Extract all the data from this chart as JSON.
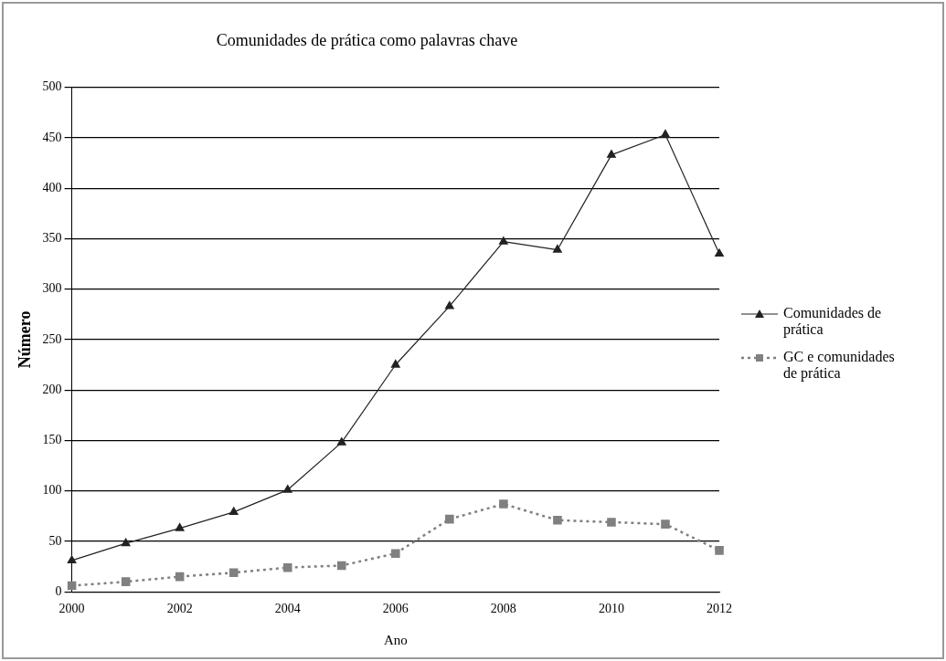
{
  "chart_data": {
    "type": "line",
    "title": "Comunidades de prática como palavras chave",
    "xlabel": "Ano",
    "ylabel": "Número",
    "x": [
      2000,
      2001,
      2002,
      2003,
      2004,
      2005,
      2006,
      2007,
      2008,
      2009,
      2010,
      2011,
      2012
    ],
    "xlim": [
      2000,
      2012
    ],
    "xticks": [
      2000,
      2002,
      2004,
      2006,
      2008,
      2010,
      2012
    ],
    "ylim": [
      0,
      500
    ],
    "yticks": [
      0,
      50,
      100,
      150,
      200,
      250,
      300,
      350,
      400,
      450,
      500
    ],
    "grid": "y",
    "legend": "right",
    "series": [
      {
        "name": "Comunidades de prática",
        "color": "#222222",
        "marker": "triangle",
        "line_style": "solid",
        "values": [
          31,
          48,
          63,
          79,
          101,
          148,
          225,
          283,
          347,
          339,
          433,
          453,
          335
        ]
      },
      {
        "name": "GC e comunidades de prática",
        "color": "#808080",
        "marker": "square",
        "line_style": "dotted",
        "values": [
          6,
          10,
          15,
          19,
          24,
          26,
          38,
          72,
          87,
          71,
          69,
          67,
          41
        ]
      }
    ]
  }
}
